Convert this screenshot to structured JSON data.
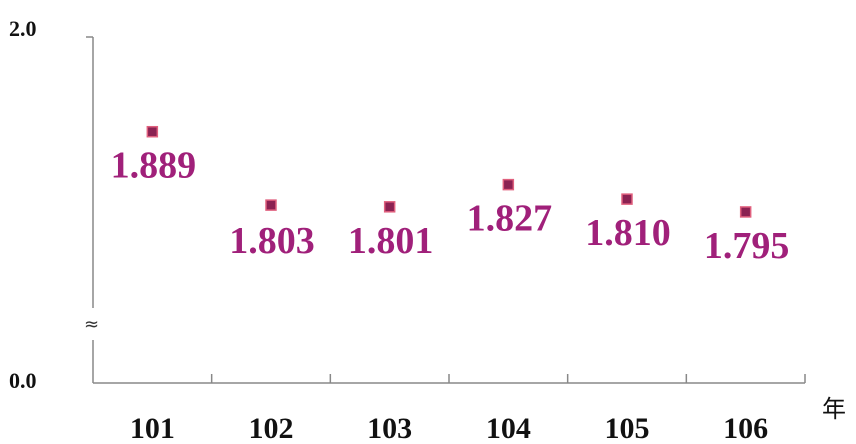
{
  "chart_data": {
    "type": "scatter",
    "categories": [
      "101",
      "102",
      "103",
      "104",
      "105",
      "106"
    ],
    "values": [
      1.889,
      1.803,
      1.801,
      1.827,
      1.81,
      1.795
    ],
    "data_labels": [
      "1.889",
      "1.803",
      "1.801",
      "1.827",
      "1.810",
      "1.795"
    ],
    "ytick_labels": [
      "2.0",
      "0.0"
    ],
    "x_unit": "年",
    "axis_break_symbol": "≈",
    "ylim": [
      0,
      2
    ],
    "y_axis_break": true,
    "grid": false,
    "legend": "none",
    "marker": "square",
    "colors": {
      "marker_fill": "#8b2252",
      "marker_border": "#e0607e",
      "label": "#a0207a",
      "axis": "#888888"
    }
  }
}
